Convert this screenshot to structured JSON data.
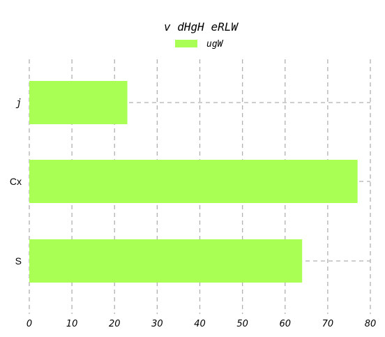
{
  "chart_data": {
    "type": "bar",
    "orientation": "horizontal",
    "title": "v dHgH eRLW",
    "categories": [
      "j",
      "Cx",
      "S"
    ],
    "series": [
      {
        "name": "ugW",
        "values": [
          23,
          77,
          64
        ],
        "color": "#aaff55"
      }
    ],
    "xlim": [
      0,
      80
    ],
    "xticks": [
      "0",
      "10",
      "20",
      "30",
      "40",
      "50",
      "60",
      "70",
      "80"
    ],
    "xtick_values": [
      0,
      10,
      20,
      30,
      40,
      50,
      60,
      70,
      80
    ],
    "grid": true,
    "grid_style": "dashed",
    "legend_position": "top-center"
  }
}
